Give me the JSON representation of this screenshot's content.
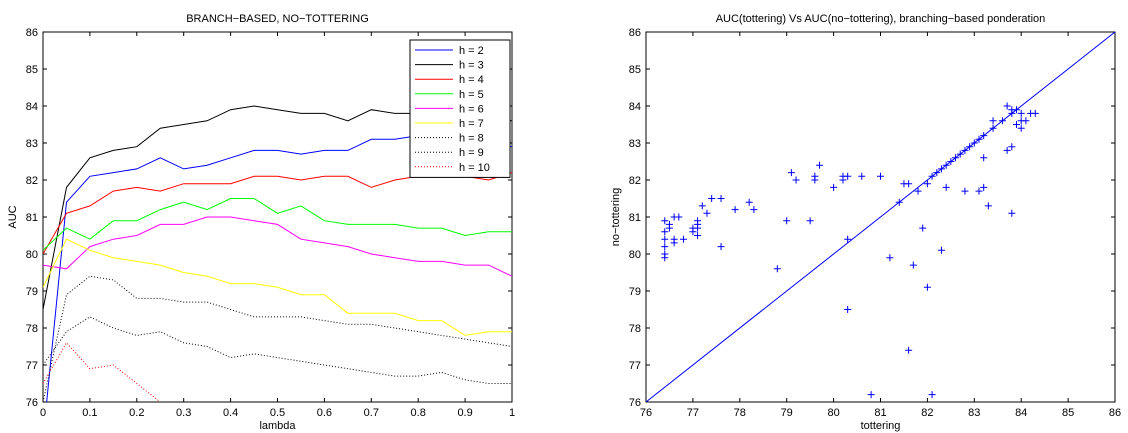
{
  "chart_data": [
    {
      "type": "line",
      "title": "BRANCH−BASED, NO−TOTTERING",
      "xlabel": "lambda",
      "ylabel": "AUC",
      "xlim": [
        0,
        1
      ],
      "ylim": [
        76,
        86
      ],
      "xticks": [
        "0",
        "0.1",
        "0.2",
        "0.3",
        "0.4",
        "0.5",
        "0.6",
        "0.7",
        "0.8",
        "0.9",
        "1"
      ],
      "yticks": [
        "76",
        "77",
        "78",
        "79",
        "80",
        "81",
        "82",
        "83",
        "84",
        "85",
        "86"
      ],
      "legend_position": "top-right",
      "x": [
        0,
        0.05,
        0.1,
        0.15,
        0.2,
        0.25,
        0.3,
        0.35,
        0.4,
        0.45,
        0.5,
        0.55,
        0.6,
        0.65,
        0.7,
        0.75,
        0.8,
        0.85,
        0.9,
        0.95,
        1
      ],
      "series": [
        {
          "name": "h = 2",
          "color": "#0000ff",
          "style": "solid",
          "values": [
            75.0,
            81.4,
            82.1,
            82.2,
            82.3,
            82.6,
            82.3,
            82.4,
            82.6,
            82.8,
            82.8,
            82.7,
            82.8,
            82.8,
            83.1,
            83.1,
            83.2,
            83.2,
            83.2,
            83.0,
            82.9
          ]
        },
        {
          "name": "h = 3",
          "color": "#000000",
          "style": "solid",
          "values": [
            78.5,
            81.8,
            82.6,
            82.8,
            82.9,
            83.4,
            83.5,
            83.6,
            83.9,
            84.0,
            83.9,
            83.8,
            83.8,
            83.6,
            83.9,
            83.8,
            83.8,
            83.7,
            83.6,
            83.6,
            83.6
          ]
        },
        {
          "name": "h = 4",
          "color": "#ff0000",
          "style": "solid",
          "values": [
            80.0,
            81.1,
            81.3,
            81.7,
            81.8,
            81.7,
            81.9,
            81.9,
            81.9,
            82.1,
            82.1,
            82.0,
            82.1,
            82.1,
            81.8,
            82.0,
            82.1,
            82.1,
            82.1,
            82.0,
            82.2
          ]
        },
        {
          "name": "h = 5",
          "color": "#00ff00",
          "style": "solid",
          "values": [
            80.1,
            80.7,
            80.4,
            80.9,
            80.9,
            81.2,
            81.4,
            81.2,
            81.5,
            81.5,
            81.1,
            81.3,
            80.9,
            80.8,
            80.8,
            80.8,
            80.7,
            80.7,
            80.5,
            80.6,
            80.6
          ]
        },
        {
          "name": "h = 6",
          "color": "#ff00ff",
          "style": "solid",
          "values": [
            79.7,
            79.6,
            80.2,
            80.4,
            80.5,
            80.8,
            80.8,
            81.0,
            81.0,
            80.9,
            80.8,
            80.4,
            80.3,
            80.2,
            80.0,
            79.9,
            79.8,
            79.8,
            79.7,
            79.7,
            79.4
          ]
        },
        {
          "name": "h = 7",
          "color": "#ffff00",
          "style": "solid",
          "values": [
            79.1,
            80.4,
            80.1,
            79.9,
            79.8,
            79.7,
            79.5,
            79.4,
            79.2,
            79.2,
            79.1,
            78.9,
            78.9,
            78.4,
            78.4,
            78.4,
            78.2,
            78.2,
            77.8,
            77.9,
            77.9
          ]
        },
        {
          "name": "h = 8",
          "color": "#000000",
          "style": "dotted",
          "values": [
            76.0,
            78.9,
            79.4,
            79.3,
            78.8,
            78.8,
            78.7,
            78.7,
            78.5,
            78.3,
            78.3,
            78.3,
            78.2,
            78.1,
            78.1,
            78.0,
            77.9,
            77.8,
            77.7,
            77.6,
            77.5
          ]
        },
        {
          "name": "h = 9",
          "color": "#000000",
          "style": "dotted",
          "values": [
            77.0,
            77.9,
            78.3,
            78.0,
            77.8,
            77.9,
            77.6,
            77.5,
            77.2,
            77.3,
            77.2,
            77.1,
            77.0,
            76.9,
            76.8,
            76.7,
            76.7,
            76.8,
            76.6,
            76.5,
            76.5
          ]
        },
        {
          "name": "h = 10",
          "color": "#ff0000",
          "style": "dotted",
          "values": [
            76.5,
            77.6,
            76.9,
            77.0,
            76.5,
            76.0,
            null,
            null,
            null,
            null,
            null,
            null,
            null,
            null,
            null,
            null,
            null,
            null,
            null,
            null,
            null
          ]
        }
      ]
    },
    {
      "type": "scatter",
      "title": "AUC(tottering) Vs AUC(no−tottering), branching−based ponderation",
      "xlabel": "tottering",
      "ylabel": "no−tottering",
      "xlim": [
        76,
        86
      ],
      "ylim": [
        76,
        86
      ],
      "xticks": [
        "76",
        "77",
        "78",
        "79",
        "80",
        "81",
        "82",
        "83",
        "84",
        "85",
        "86"
      ],
      "yticks": [
        "76",
        "77",
        "78",
        "79",
        "80",
        "81",
        "82",
        "83",
        "84",
        "85",
        "86"
      ],
      "color": "#0000ff",
      "marker": "plus",
      "reference_line": [
        [
          76,
          76
        ],
        [
          86,
          86
        ]
      ],
      "points": [
        [
          76.4,
          80.9
        ],
        [
          76.4,
          80.6
        ],
        [
          76.4,
          80.4
        ],
        [
          76.4,
          80.2
        ],
        [
          76.4,
          80.0
        ],
        [
          76.4,
          79.9
        ],
        [
          76.5,
          80.8
        ],
        [
          76.5,
          80.7
        ],
        [
          76.6,
          81.0
        ],
        [
          76.6,
          80.4
        ],
        [
          76.6,
          80.3
        ],
        [
          76.7,
          81.0
        ],
        [
          76.8,
          80.4
        ],
        [
          77.0,
          80.7
        ],
        [
          77.0,
          80.6
        ],
        [
          77.1,
          80.9
        ],
        [
          77.1,
          80.8
        ],
        [
          77.1,
          80.7
        ],
        [
          77.1,
          80.5
        ],
        [
          77.2,
          81.3
        ],
        [
          77.3,
          81.1
        ],
        [
          77.4,
          81.5
        ],
        [
          77.6,
          81.5
        ],
        [
          77.6,
          80.2
        ],
        [
          77.9,
          81.2
        ],
        [
          78.2,
          81.4
        ],
        [
          78.3,
          81.2
        ],
        [
          78.8,
          79.6
        ],
        [
          79.0,
          80.9
        ],
        [
          79.1,
          82.2
        ],
        [
          79.2,
          82.0
        ],
        [
          79.5,
          80.9
        ],
        [
          79.6,
          82.1
        ],
        [
          79.6,
          82.0
        ],
        [
          79.7,
          82.4
        ],
        [
          80.0,
          81.8
        ],
        [
          80.2,
          82.1
        ],
        [
          80.2,
          82.0
        ],
        [
          80.3,
          82.1
        ],
        [
          80.3,
          80.4
        ],
        [
          80.3,
          78.5
        ],
        [
          80.6,
          82.1
        ],
        [
          80.8,
          76.2
        ],
        [
          81.0,
          82.1
        ],
        [
          81.2,
          79.9
        ],
        [
          81.4,
          81.4
        ],
        [
          81.5,
          81.9
        ],
        [
          81.6,
          81.9
        ],
        [
          81.6,
          77.4
        ],
        [
          81.7,
          79.7
        ],
        [
          81.8,
          81.7
        ],
        [
          81.9,
          80.7
        ],
        [
          82.0,
          81.9
        ],
        [
          82.0,
          79.1
        ],
        [
          82.1,
          76.2
        ],
        [
          82.1,
          82.1
        ],
        [
          82.2,
          82.2
        ],
        [
          82.3,
          82.3
        ],
        [
          82.3,
          80.1
        ],
        [
          82.4,
          82.4
        ],
        [
          82.4,
          81.8
        ],
        [
          82.5,
          82.5
        ],
        [
          82.6,
          82.6
        ],
        [
          82.7,
          82.7
        ],
        [
          82.8,
          82.8
        ],
        [
          82.9,
          82.9
        ],
        [
          82.8,
          81.7
        ],
        [
          83.0,
          83.0
        ],
        [
          83.1,
          83.1
        ],
        [
          83.1,
          81.7
        ],
        [
          83.2,
          83.2
        ],
        [
          83.2,
          82.6
        ],
        [
          83.2,
          81.8
        ],
        [
          83.3,
          81.3
        ],
        [
          83.4,
          83.4
        ],
        [
          83.4,
          83.6
        ],
        [
          83.6,
          83.6
        ],
        [
          83.7,
          84.0
        ],
        [
          83.7,
          82.8
        ],
        [
          83.8,
          83.9
        ],
        [
          83.8,
          83.8
        ],
        [
          83.8,
          82.9
        ],
        [
          83.8,
          81.1
        ],
        [
          83.9,
          83.9
        ],
        [
          83.9,
          83.5
        ],
        [
          84.0,
          83.8
        ],
        [
          84.0,
          83.4
        ],
        [
          84.0,
          83.6
        ],
        [
          84.1,
          83.6
        ],
        [
          84.2,
          83.8
        ],
        [
          84.3,
          83.8
        ]
      ]
    }
  ]
}
